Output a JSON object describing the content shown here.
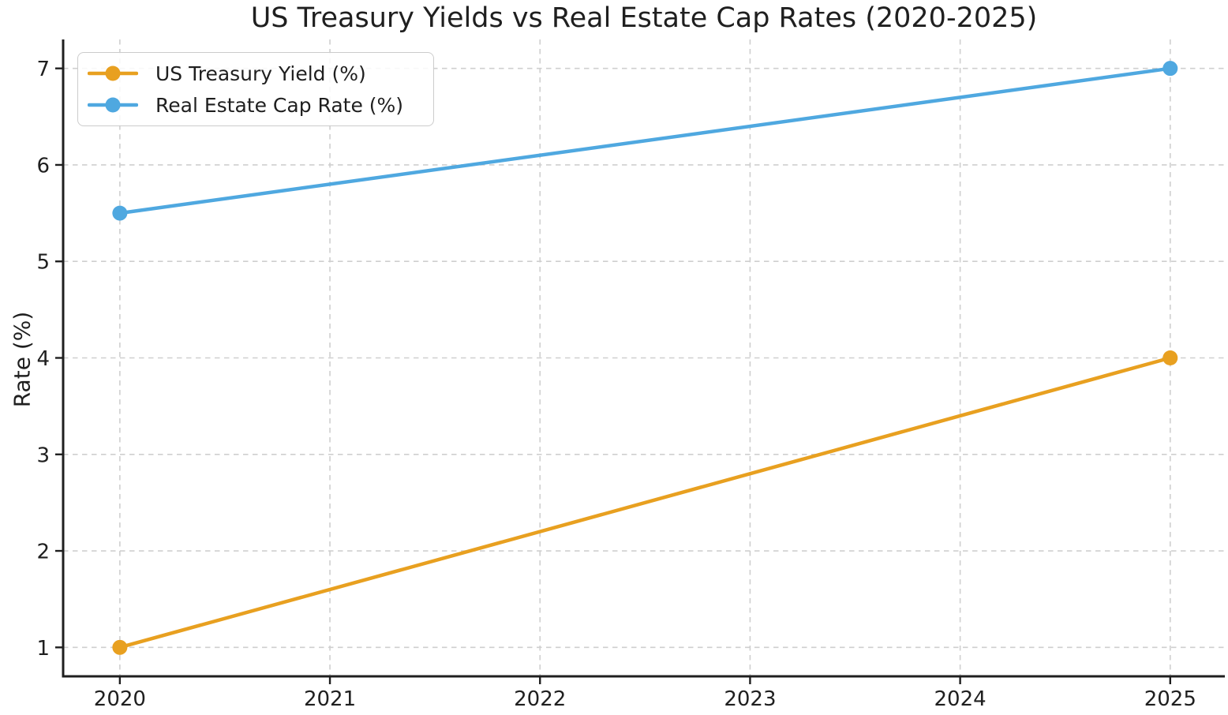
{
  "chart_data": {
    "type": "line",
    "title": "US Treasury Yields vs Real Estate Cap Rates (2020-2025)",
    "xlabel": "",
    "ylabel": "Rate (%)",
    "x": [
      2020,
      2025
    ],
    "series": [
      {
        "name": "US Treasury Yield (%)",
        "color": "#E8A020",
        "values": [
          1.0,
          4.0
        ]
      },
      {
        "name": "Real Estate Cap Rate (%)",
        "color": "#4FA8E0",
        "values": [
          5.5,
          7.0
        ]
      }
    ],
    "xticks": [
      2020,
      2021,
      2022,
      2023,
      2024,
      2025
    ],
    "yticks": [
      1,
      2,
      3,
      4,
      5,
      6,
      7
    ],
    "xlim": [
      2019.73,
      2025.26
    ],
    "ylim": [
      0.7,
      7.3
    ],
    "grid": true,
    "grid_style": "dashed",
    "legend_position": "upper left",
    "marker": "circle",
    "line_width": 4.5,
    "marker_radius": 9.5,
    "colors": {
      "text": "#1f1f1f",
      "grid": "#cfcfcf",
      "spine": "#1f1f1f",
      "background": "#ffffff",
      "legend_border": "#cccccc"
    }
  }
}
